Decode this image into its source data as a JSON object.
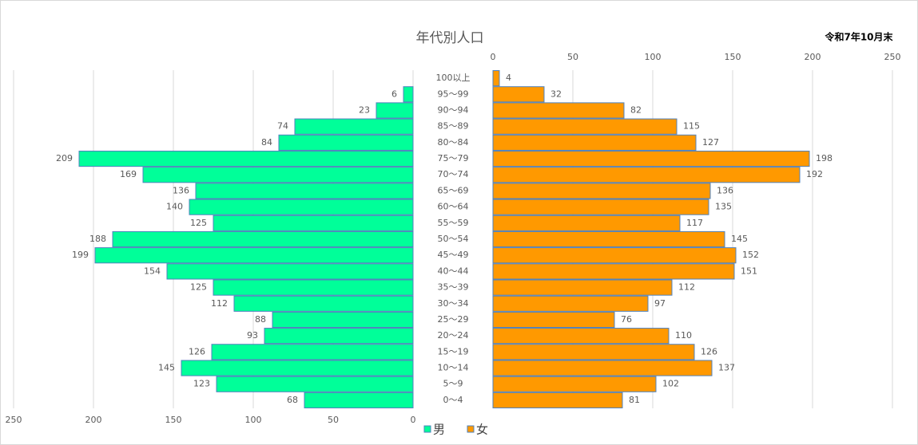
{
  "chart_data": {
    "type": "pyramid",
    "title": "年代別人口",
    "subtitle": "令和7年10月末",
    "categories": [
      "100以上",
      "95～99",
      "90～94",
      "85～89",
      "80～84",
      "75～79",
      "70～74",
      "65～69",
      "60～64",
      "55～59",
      "50～54",
      "45～49",
      "40～44",
      "35～39",
      "30～34",
      "25～29",
      "20～24",
      "15～19",
      "10～14",
      "5～9",
      "0～4"
    ],
    "series": [
      {
        "name": "男",
        "color": "#00ff99",
        "values": [
          null,
          6,
          23,
          74,
          84,
          209,
          169,
          136,
          140,
          125,
          188,
          199,
          154,
          125,
          112,
          88,
          93,
          126,
          145,
          123,
          68
        ]
      },
      {
        "name": "女",
        "color": "#ff9900",
        "values": [
          4,
          32,
          82,
          115,
          127,
          198,
          192,
          136,
          135,
          117,
          145,
          152,
          151,
          112,
          97,
          76,
          110,
          126,
          137,
          102,
          81
        ]
      }
    ],
    "xlim": [
      0,
      250
    ],
    "xticks": [
      0,
      50,
      100,
      150,
      200,
      250
    ],
    "grid": true
  }
}
